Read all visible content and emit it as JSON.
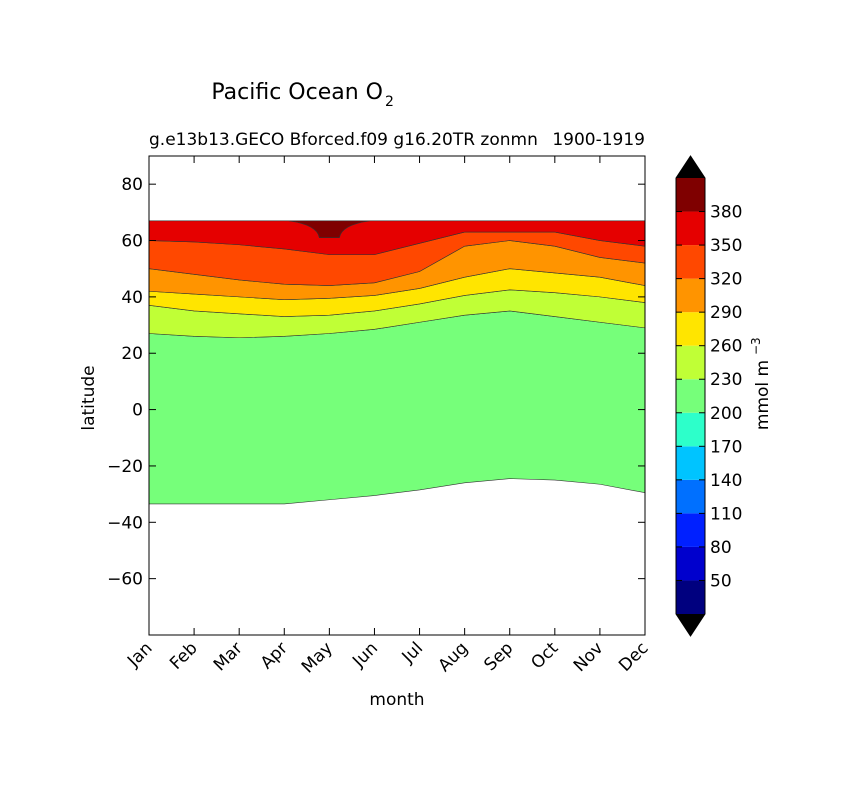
{
  "chart_data": {
    "type": "contourf",
    "title_main": "Pacific Ocean O",
    "title_sub": "2",
    "subtitle_left": "g.e13b13.GECO Bforced.f09 g16.20TR zonmn",
    "subtitle_right": "1900-1919",
    "xlabel": "month",
    "ylabel": "latitude",
    "x_ticks": [
      "Jan",
      "Feb",
      "Mar",
      "Apr",
      "May",
      "Jun",
      "Jul",
      "Aug",
      "Sep",
      "Oct",
      "Nov",
      "Dec"
    ],
    "y_ticks": [
      -60,
      -40,
      -20,
      0,
      20,
      40,
      60,
      80
    ],
    "ylim": [
      -80,
      90
    ],
    "colorbar": {
      "label": "mmol m",
      "label_exponent": "−3",
      "levels": [
        20,
        50,
        80,
        110,
        140,
        170,
        200,
        230,
        260,
        290,
        320,
        350,
        380,
        410
      ],
      "tick_labels": [
        "50",
        "80",
        "110",
        "140",
        "170",
        "200",
        "230",
        "260",
        "290",
        "320",
        "350",
        "380"
      ],
      "colors": [
        "#00007f",
        "#0000cd",
        "#0020ff",
        "#0070ff",
        "#00c4ff",
        "#2dffca",
        "#76ff7a",
        "#c0ff36",
        "#ffe500",
        "#ff9400",
        "#ff4800",
        "#e50000",
        "#7f0000"
      ],
      "extend": "both",
      "under_color": "#000000",
      "over_color": "#000000"
    },
    "data_extent_lat": [
      -33.5,
      67
    ],
    "contour_bands": [
      {
        "range": "200-230",
        "color": "#76ff7a",
        "lower_boundary": [
          -33.5,
          -33.5,
          -33.5,
          -33.5,
          -32,
          -30.5,
          -28.5,
          -26,
          -24.5,
          -25,
          -26.5,
          -29.5
        ],
        "upper_boundary": [
          27,
          26,
          25.5,
          26,
          27,
          28.5,
          31,
          33.5,
          35,
          33,
          31,
          29
        ]
      },
      {
        "range": "230-260",
        "color": "#c0ff36",
        "upper_boundary": [
          37,
          35,
          34,
          33,
          33.5,
          35,
          37.5,
          40.5,
          42.5,
          41.5,
          40,
          38
        ]
      },
      {
        "range": "260-290",
        "color": "#ffe500",
        "upper_boundary": [
          42,
          41,
          40,
          39,
          39.5,
          40.5,
          43,
          47,
          50,
          48.5,
          47,
          44
        ]
      },
      {
        "range": "290-320",
        "color": "#ff9400",
        "upper_boundary": [
          50,
          48,
          46,
          44.5,
          44,
          45,
          49,
          58,
          60,
          58,
          54,
          52
        ]
      },
      {
        "range": "320-350",
        "color": "#ff4800",
        "upper_boundary": [
          60,
          59.5,
          58.5,
          57,
          55,
          55,
          59,
          63,
          63,
          63,
          60,
          58
        ]
      },
      {
        "range": "350-380",
        "color": "#e50000",
        "upper_boundary": [
          67,
          67,
          67,
          67,
          67,
          67,
          67,
          67,
          67,
          67,
          67,
          67
        ]
      },
      {
        "range": "380-410",
        "color": "#7f0000",
        "patch_month": "May",
        "patch_lat": [
          61,
          67
        ]
      }
    ]
  }
}
